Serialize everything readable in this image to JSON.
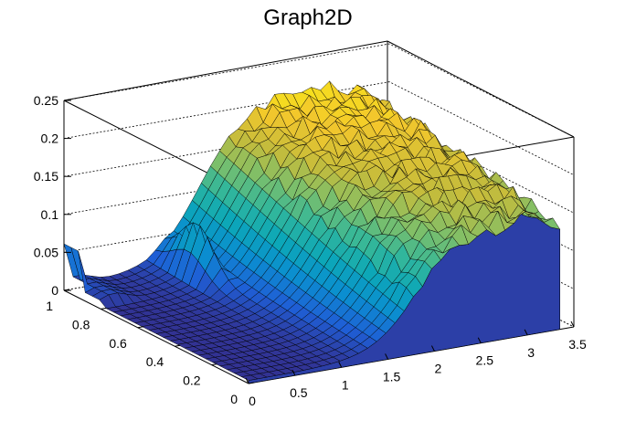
{
  "chart_data": {
    "type": "surface",
    "title": "Graph2D",
    "x_axis": {
      "range": [
        0,
        3.5
      ],
      "ticks": [
        "0",
        "0.5",
        "1",
        "1.5",
        "2",
        "2.5",
        "3",
        "3.5"
      ]
    },
    "y_axis": {
      "range": [
        0,
        1
      ],
      "ticks": [
        "0",
        "0.2",
        "0.4",
        "0.6",
        "0.8",
        "1"
      ]
    },
    "z_axis": {
      "range": [
        0,
        0.25
      ],
      "ticks": [
        "0",
        "0.05",
        "0.1",
        "0.15",
        "0.2",
        "0.25"
      ]
    },
    "colormap": [
      "#352a87",
      "#1f5fd6",
      "#0b8ed0",
      "#0ca7b8",
      "#33b79a",
      "#7dbf6a",
      "#c4bc3c",
      "#f3c72c",
      "#f9fb0e"
    ],
    "grid": true,
    "samples": {
      "x": [
        0,
        0.5,
        1,
        1.5,
        2,
        2.5,
        3,
        3.3
      ],
      "z_at_y_1": [
        0.06,
        0.01,
        0.04,
        0.12,
        0.2,
        0.19,
        0.18,
        0.17
      ],
      "z_at_y_0.5": [
        0.005,
        0.01,
        0.03,
        0.1,
        0.16,
        0.17,
        0.17,
        0.16
      ],
      "z_at_y_0": [
        0.003,
        0.008,
        0.02,
        0.06,
        0.12,
        0.16,
        0.15,
        0.14
      ]
    }
  }
}
